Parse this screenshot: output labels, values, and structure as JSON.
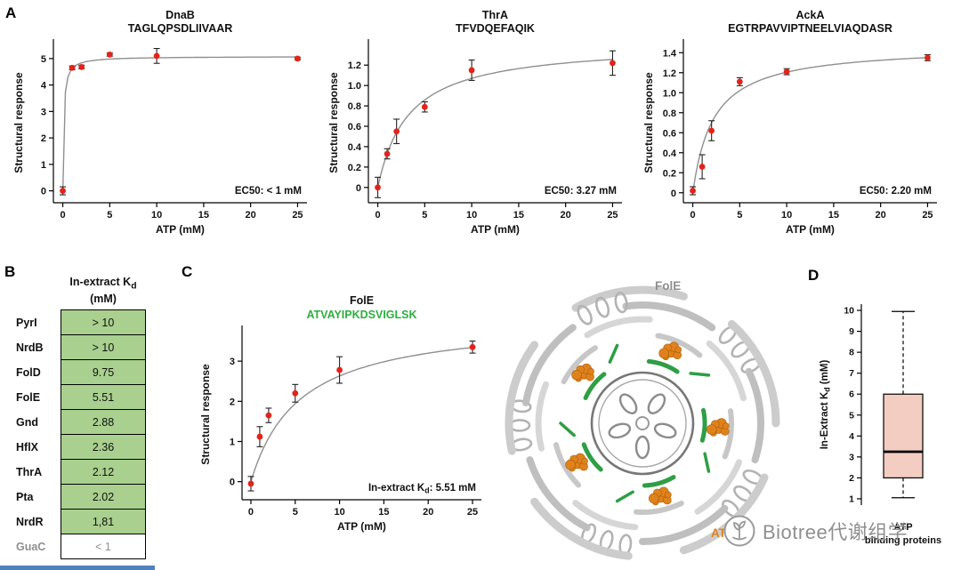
{
  "panels": {
    "a": "A",
    "b": "B",
    "c": "C",
    "d": "D"
  },
  "tableB": {
    "header_pre": "In-extract K",
    "header_sub": "d",
    "header_line2": "(mM)",
    "rows": [
      {
        "protein": "PyrI",
        "value": "> 10"
      },
      {
        "protein": "NrdB",
        "value": "> 10"
      },
      {
        "protein": "FolD",
        "value": "9.75"
      },
      {
        "protein": "FolE",
        "value": "5.51"
      },
      {
        "protein": "Gnd",
        "value": "2.88"
      },
      {
        "protein": "HflX",
        "value": "2.36"
      },
      {
        "protein": "ThrA",
        "value": "2.12"
      },
      {
        "protein": "Pta",
        "value": "2.02"
      },
      {
        "protein": "NrdR",
        "value": "1,81"
      },
      {
        "protein": "GuaC",
        "value": "< 1"
      }
    ]
  },
  "structure": {
    "label": "FolE",
    "legend": "ATP"
  },
  "watermark": {
    "text": "Biotree代谢组学"
  },
  "chart_data": [
    {
      "id": "DnaB",
      "type": "scatter",
      "title": "DnaB",
      "subtitle": "TAGLQPSDLIIVAAR",
      "xlabel": "ATP (mM)",
      "ylabel": "Structural response",
      "xlim": [
        -1,
        26
      ],
      "xticks": [
        0,
        5,
        10,
        15,
        20,
        25
      ],
      "ylim": [
        -0.45,
        5.6
      ],
      "yticks": [
        0,
        1,
        2,
        3,
        4,
        5
      ],
      "x": [
        0,
        1,
        2,
        5,
        10,
        25
      ],
      "y": [
        0,
        4.65,
        4.68,
        5.15,
        5.1,
        5.0
      ],
      "yerr": [
        0.15,
        0.07,
        0.07,
        0.06,
        0.28,
        0.05
      ],
      "fit": {
        "ymax": 5.08,
        "ec50": 0.1
      },
      "annotation": "EC50: < 1 mM",
      "point_color": "#e2231a",
      "curve_color": "#8f8f8f"
    },
    {
      "id": "ThrA",
      "type": "scatter",
      "title": "ThrA",
      "subtitle": "TFVDQEFAQIK",
      "xlabel": "ATP (mM)",
      "ylabel": "Structural response",
      "xlim": [
        -1,
        26
      ],
      "xticks": [
        0,
        5,
        10,
        15,
        20,
        25
      ],
      "ylim": [
        -0.15,
        1.42
      ],
      "yticks": [
        0,
        0.2,
        0.4,
        0.6,
        0.8,
        1.0,
        1.2
      ],
      "ytick_labels": [
        "0",
        "0.2",
        "0.4",
        "0.6",
        "0.8",
        "1.0",
        "1.2"
      ],
      "x": [
        0,
        1,
        2,
        5,
        10,
        25
      ],
      "y": [
        0,
        0.33,
        0.55,
        0.79,
        1.15,
        1.22
      ],
      "yerr": [
        0.1,
        0.05,
        0.12,
        0.05,
        0.1,
        0.12
      ],
      "fit": {
        "ymax": 1.42,
        "ec50": 3.27
      },
      "annotation": "EC50: 3.27 mM",
      "point_color": "#e2231a",
      "curve_color": "#8f8f8f"
    },
    {
      "id": "AckA",
      "type": "scatter",
      "title": "AckA",
      "subtitle": "EGTRPAVVIPTNEELVIAQDASR",
      "xlabel": "ATP (mM)",
      "ylabel": "Structural response",
      "xlim": [
        -1,
        26
      ],
      "xticks": [
        0,
        5,
        10,
        15,
        20,
        25
      ],
      "ylim": [
        -0.1,
        1.5
      ],
      "yticks": [
        0,
        0.2,
        0.4,
        0.6,
        0.8,
        1.0,
        1.2,
        1.4
      ],
      "ytick_labels": [
        "0",
        "0.2",
        "0.4",
        "0.6",
        "0.8",
        "1.0",
        "1.2",
        "1.4"
      ],
      "x": [
        0,
        1,
        2,
        5,
        10,
        25
      ],
      "y": [
        0.02,
        0.26,
        0.62,
        1.11,
        1.21,
        1.35
      ],
      "yerr": [
        0.04,
        0.12,
        0.1,
        0.04,
        0.03,
        0.03
      ],
      "fit": {
        "ymax": 1.47,
        "ec50": 2.2
      },
      "annotation": "EC50: 2.20 mM",
      "point_color": "#e2231a",
      "curve_color": "#8f8f8f"
    },
    {
      "id": "FolE",
      "type": "scatter",
      "title": "FolE",
      "subtitle": "ATVAYIPKDSVIGLSK",
      "subtitle_color": "#2eae3e",
      "xlabel": "ATP (mM)",
      "ylabel": "Structural response",
      "xlim": [
        -1,
        26
      ],
      "xticks": [
        0,
        5,
        10,
        15,
        20,
        25
      ],
      "ylim": [
        -0.45,
        3.8
      ],
      "yticks": [
        0,
        1,
        2,
        3
      ],
      "x": [
        0,
        1,
        2,
        5,
        10,
        25
      ],
      "y": [
        -0.05,
        1.12,
        1.65,
        2.2,
        2.78,
        3.35
      ],
      "yerr": [
        0.18,
        0.25,
        0.18,
        0.22,
        0.33,
        0.15
      ],
      "fit": {
        "ymax": 4.08,
        "ec50": 5.51
      },
      "annotation": {
        "pre": "In-extract K",
        "sub": "d",
        "post": ": 5.51 mM"
      },
      "point_color": "#e2231a",
      "curve_color": "#8f8f8f"
    },
    {
      "id": "kd_boxplot",
      "type": "box",
      "ylabel_parts": {
        "pre": "In-Extract K",
        "sub": "d",
        "post": " (mM)"
      },
      "ylim": [
        0.7,
        10.3
      ],
      "yticks": [
        1,
        2,
        3,
        4,
        5,
        6,
        7,
        8,
        9,
        10
      ],
      "stats": {
        "whisker_low": 1.05,
        "q1": 2.0,
        "median": 3.25,
        "q3": 6.0,
        "whisker_high": 9.95
      },
      "box_color": "#f4cdc2",
      "xlabel_lines": [
        "ATP",
        "binding proteins"
      ]
    }
  ]
}
